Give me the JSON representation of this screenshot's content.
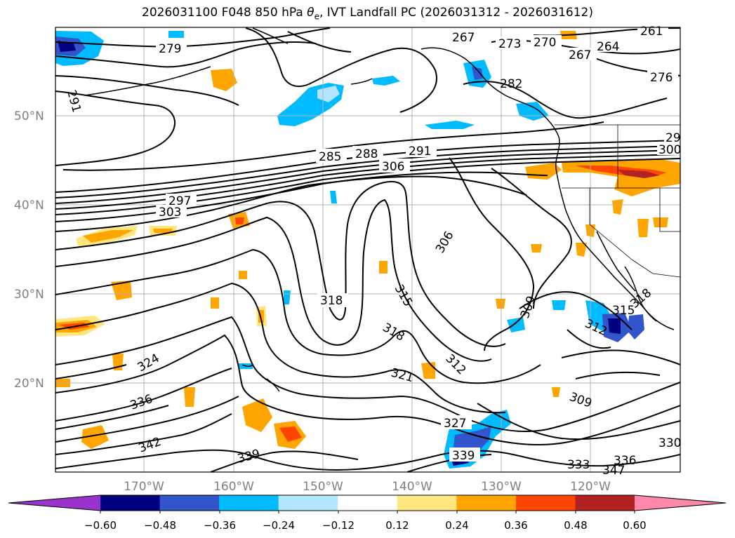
{
  "title": {
    "prefix": "2026031100 F048 850 hPa ",
    "theta": "θ",
    "theta_sub": "e",
    "suffix": ", IVT Landfall PC (2026031312 - 2026031612)"
  },
  "lat_labels": [
    "50°N",
    "40°N",
    "30°N",
    "20°N"
  ],
  "lon_labels": [
    "170°W",
    "160°W",
    "150°W",
    "140°W",
    "130°W",
    "120°W"
  ],
  "colorbar": {
    "colors": [
      "#9933cc",
      "#000080",
      "#3355cc",
      "#00bbff",
      "#b3e5ff",
      "#ffffff",
      "#ffe680",
      "#ffa500",
      "#ff4500",
      "#b22222",
      "#ff88aa"
    ],
    "ticks": [
      "−0.60",
      "−0.48",
      "−0.36",
      "−0.24",
      "−0.12",
      "0.12",
      "0.24",
      "0.36",
      "0.48",
      "0.60"
    ]
  },
  "contour_labels": [
    "279",
    "267",
    "273",
    "270",
    "267",
    "264",
    "261",
    "276",
    "291",
    "282",
    "285",
    "288",
    "291",
    "306",
    "297",
    "303",
    "300",
    "29",
    "306",
    "318",
    "315",
    "318",
    "309",
    "315",
    "312",
    "321",
    "312",
    "324",
    "336",
    "309",
    "327",
    "339",
    "342",
    "339",
    "333",
    "336",
    "330",
    "347",
    "318"
  ]
}
